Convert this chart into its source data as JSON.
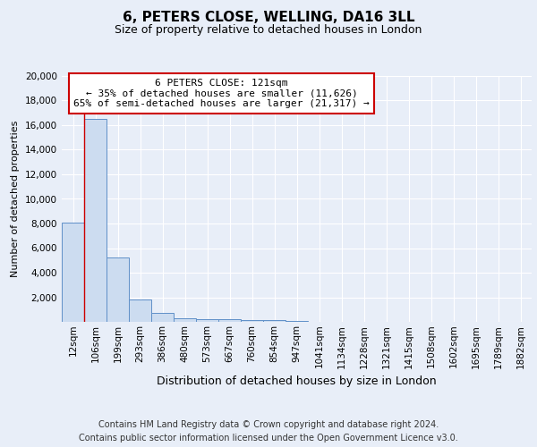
{
  "title": "6, PETERS CLOSE, WELLING, DA16 3LL",
  "subtitle": "Size of property relative to detached houses in London",
  "xlabel": "Distribution of detached houses by size in London",
  "ylabel": "Number of detached properties",
  "bin_labels": [
    "12sqm",
    "106sqm",
    "199sqm",
    "293sqm",
    "386sqm",
    "480sqm",
    "573sqm",
    "667sqm",
    "760sqm",
    "854sqm",
    "947sqm",
    "1041sqm",
    "1134sqm",
    "1228sqm",
    "1321sqm",
    "1415sqm",
    "1508sqm",
    "1602sqm",
    "1695sqm",
    "1789sqm",
    "1882sqm"
  ],
  "bar_heights": [
    8100,
    16500,
    5250,
    1850,
    700,
    320,
    230,
    190,
    170,
    160,
    90,
    0,
    0,
    0,
    0,
    0,
    0,
    0,
    0,
    0,
    0
  ],
  "bar_color": "#ccdcf0",
  "bar_edge_color": "#6090c8",
  "red_line_x": 1,
  "annotation_line1": "6 PETERS CLOSE: 121sqm",
  "annotation_line2": "← 35% of detached houses are smaller (11,626)",
  "annotation_line3": "65% of semi-detached houses are larger (21,317) →",
  "annotation_box_color": "#ffffff",
  "annotation_box_edge": "#cc0000",
  "ylim": [
    0,
    20000
  ],
  "yticks": [
    0,
    2000,
    4000,
    6000,
    8000,
    10000,
    12000,
    14000,
    16000,
    18000,
    20000
  ],
  "footnote": "Contains HM Land Registry data © Crown copyright and database right 2024.\nContains public sector information licensed under the Open Government Licence v3.0.",
  "bg_color": "#e8eef8",
  "plot_bg_color": "#e8eef8",
  "grid_color": "#ffffff",
  "title_fontsize": 11,
  "subtitle_fontsize": 9,
  "ylabel_fontsize": 8,
  "xlabel_fontsize": 9,
  "tick_fontsize": 7.5,
  "annotation_fontsize": 8,
  "footnote_fontsize": 7
}
